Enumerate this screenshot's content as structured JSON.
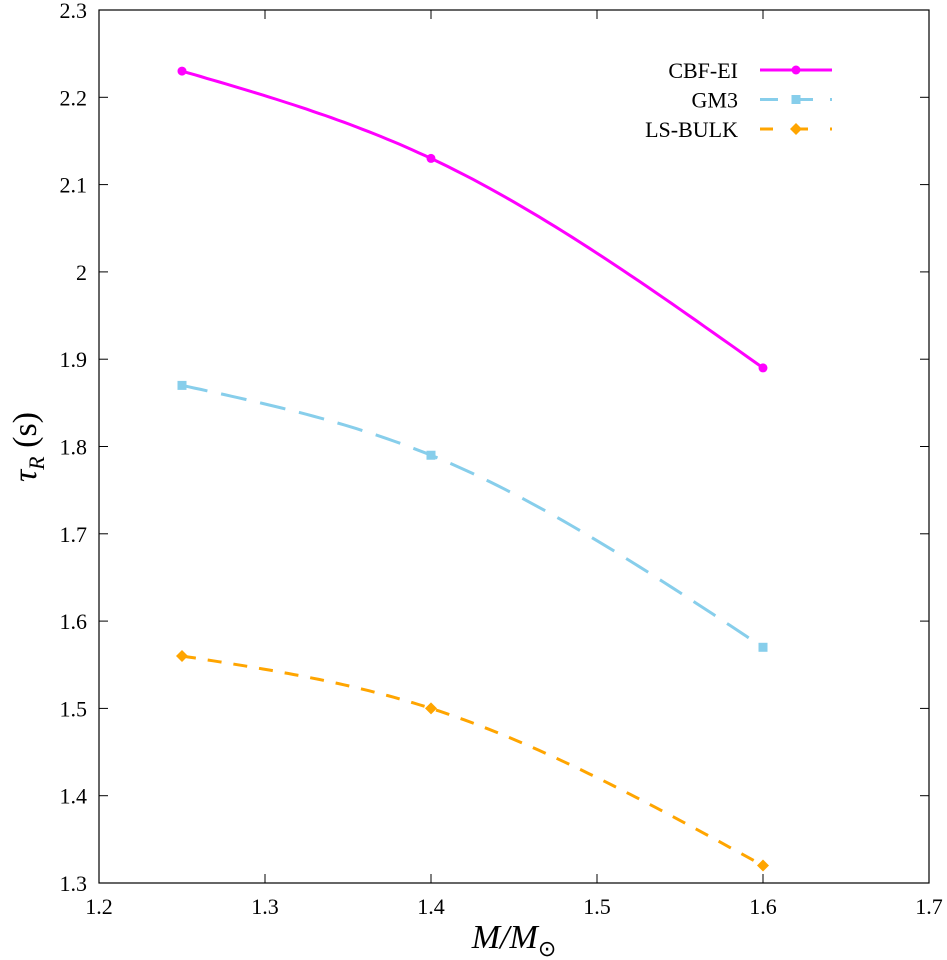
{
  "chart_data": {
    "type": "line",
    "title": "",
    "xlabel": "M/M_⊙",
    "xlabel_parts": {
      "main": "M/M",
      "sub": "⊙"
    },
    "ylabel": "τ_R (s)",
    "ylabel_parts": {
      "main": "τ",
      "sub": "R",
      "unit": " (s)"
    },
    "xlim": [
      1.2,
      1.7
    ],
    "ylim": [
      1.3,
      2.3
    ],
    "xticks": [
      "1.2",
      "1.3",
      "1.4",
      "1.5",
      "1.6",
      "1.7"
    ],
    "yticks": [
      "1.3",
      "1.4",
      "1.5",
      "1.6",
      "1.7",
      "1.8",
      "1.9",
      "2",
      "2.1",
      "2.2",
      "2.3"
    ],
    "grid": false,
    "legend_position": "top-right",
    "x": [
      1.25,
      1.4,
      1.6
    ],
    "series": [
      {
        "name": "CBF-EI",
        "values": [
          2.23,
          2.13,
          1.89
        ],
        "color": "#ff00ff",
        "marker": "circle",
        "dash": "solid"
      },
      {
        "name": "GM3",
        "values": [
          1.87,
          1.79,
          1.57
        ],
        "color": "#87ceeb",
        "marker": "square",
        "dash": "long-dash"
      },
      {
        "name": "LS-BULK",
        "values": [
          1.56,
          1.5,
          1.32
        ],
        "color": "#ffa500",
        "marker": "diamond",
        "dash": "short-dash"
      }
    ]
  }
}
